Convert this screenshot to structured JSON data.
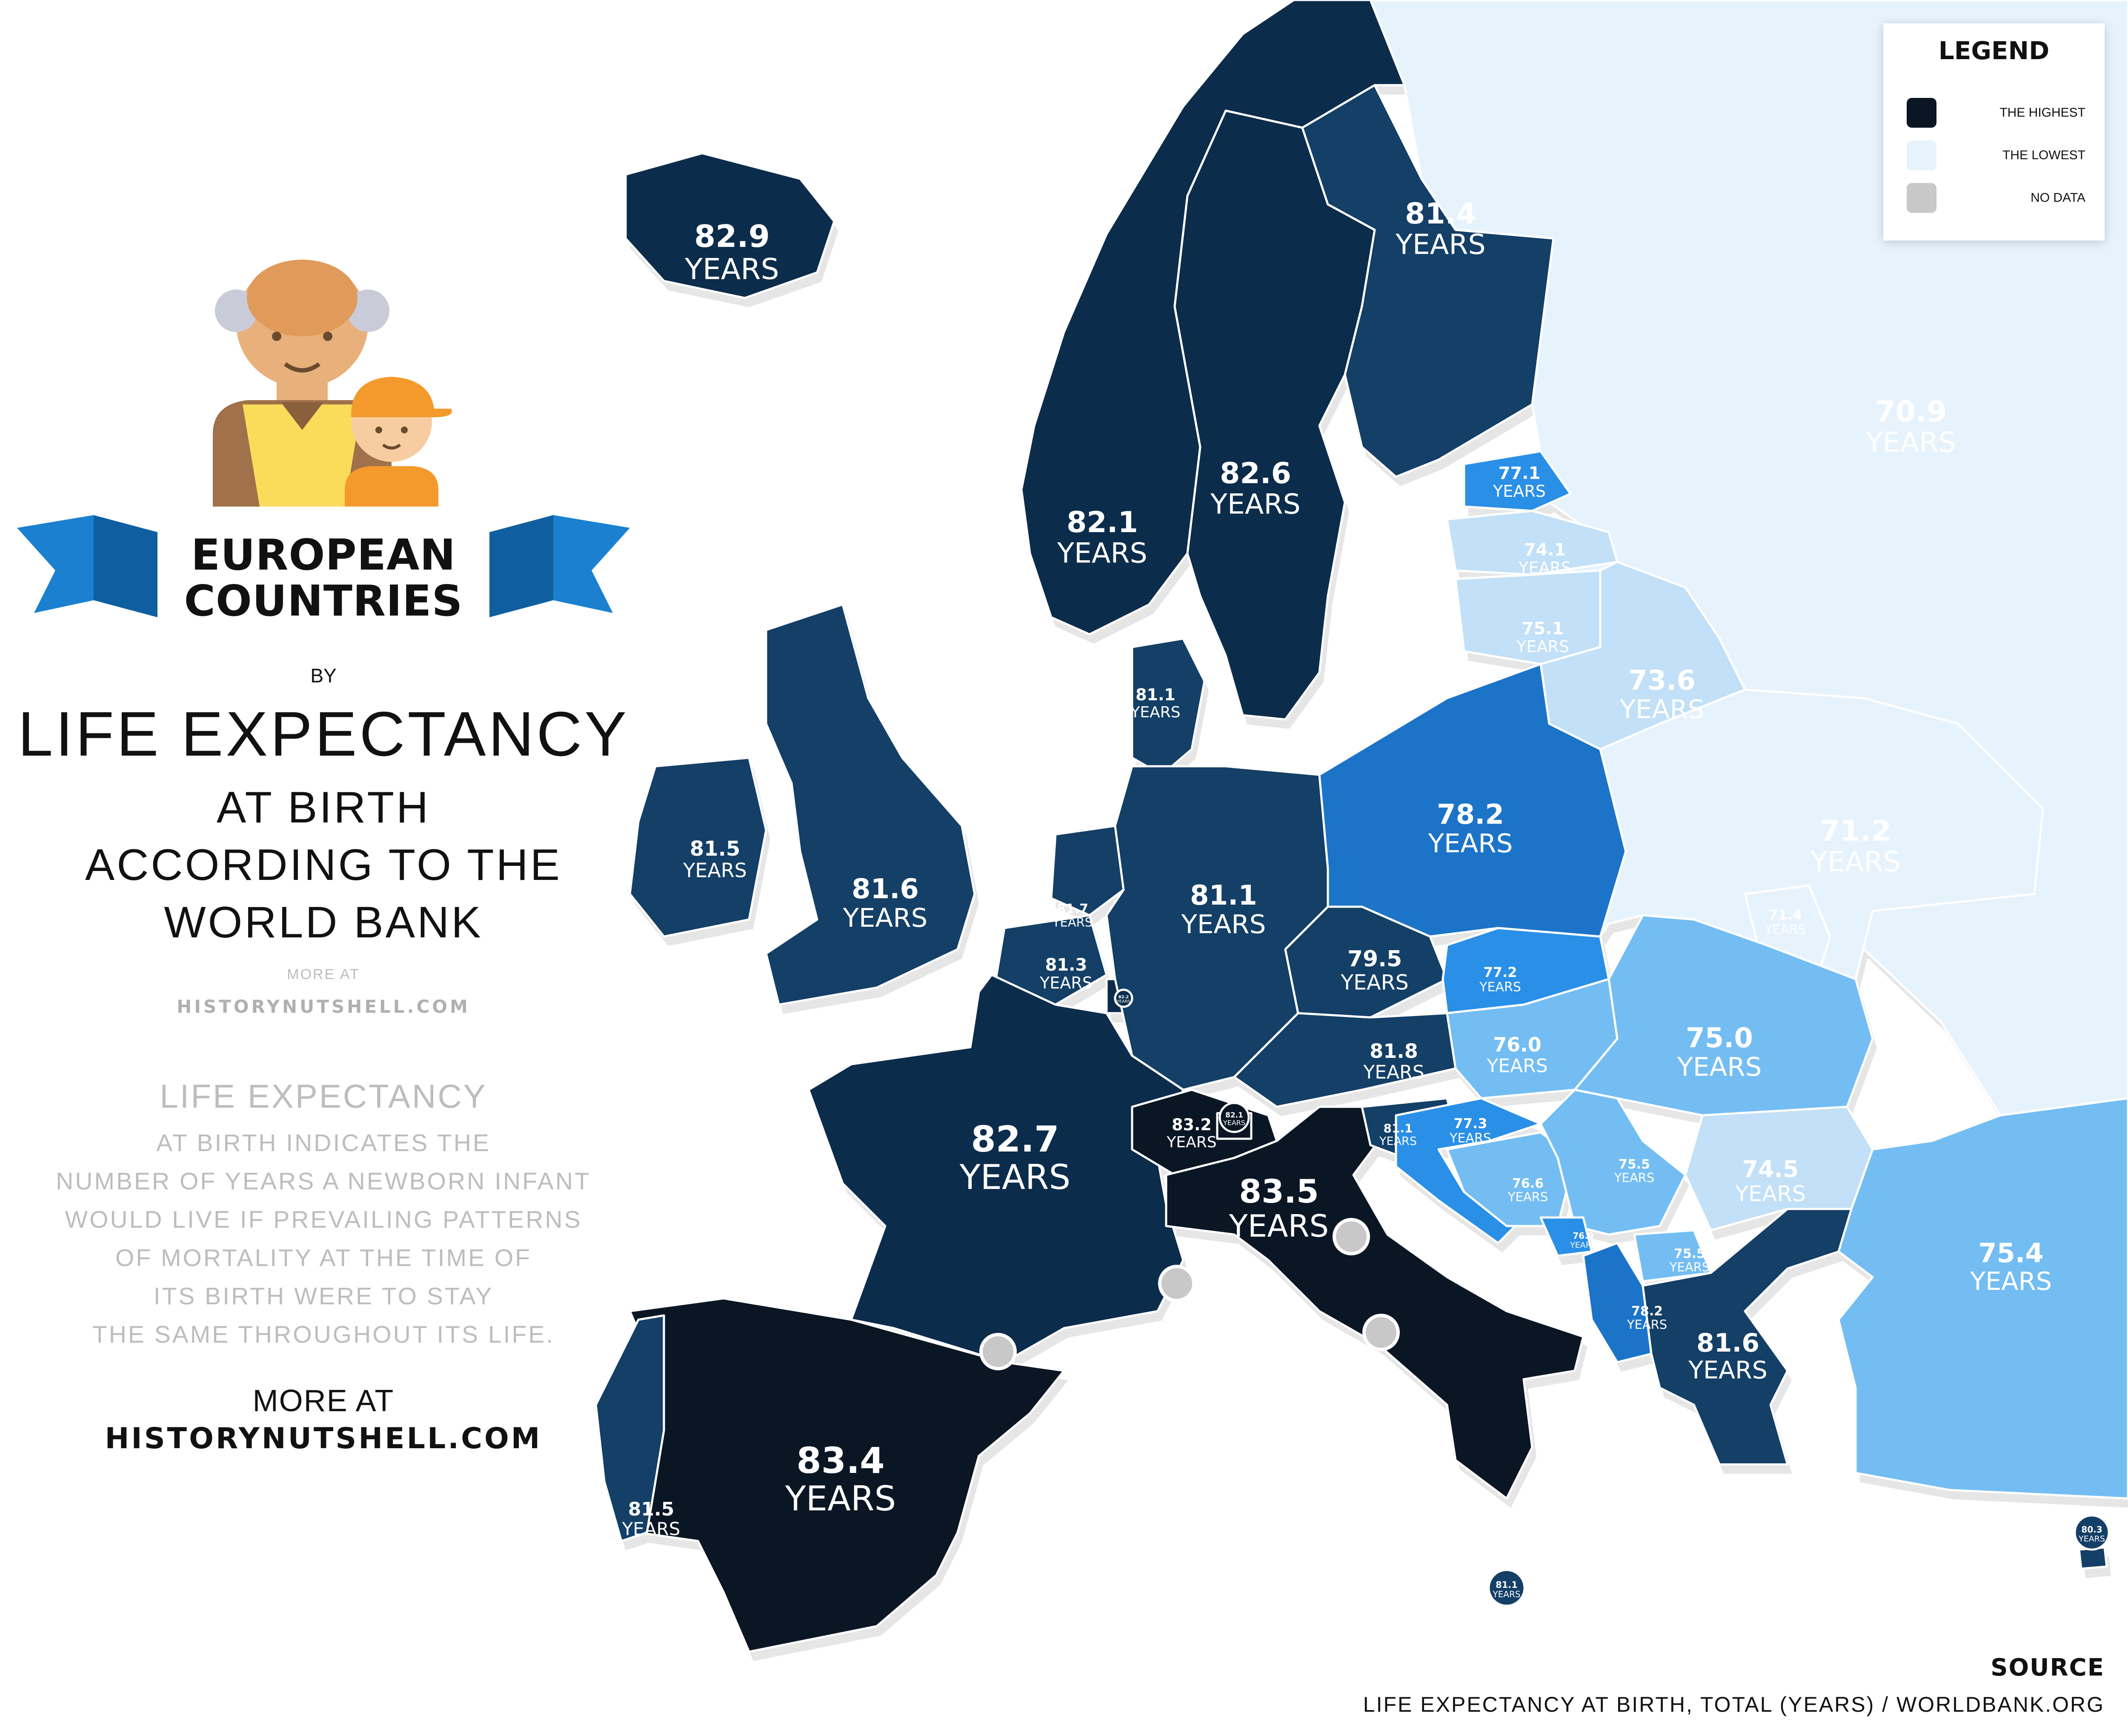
{
  "title": {
    "banner_line1": "EUROPEAN",
    "banner_line2": "COUNTRIES",
    "by": "BY",
    "main": "LIFE EXPECTANCY",
    "sub1": "AT BIRTH",
    "sub2": "ACCORDING TO THE",
    "sub3": "WORLD BANK"
  },
  "more_at_small": "MORE AT",
  "site_small": "HISTORYNUTSHELL.COM",
  "description": {
    "heading": "LIFE EXPECTANCY",
    "lines": [
      "AT BIRTH INDICATES THE",
      "NUMBER OF YEARS A NEWBORN INFANT",
      "WOULD LIVE IF PREVAILING PATTERNS",
      "OF MORTALITY AT THE TIME OF",
      "ITS BIRTH WERE TO STAY",
      "THE SAME THROUGHOUT ITS LIFE."
    ]
  },
  "more_at_big": "MORE AT",
  "site_big": "HISTORYNUTSHELL.COM",
  "legend": {
    "title": "LEGEND",
    "items": [
      {
        "label": "THE HIGHEST",
        "color": "#0b1624"
      },
      {
        "label": "THE LOWEST",
        "color": "#e6f3fd"
      },
      {
        "label": "NO DATA",
        "color": "#c8c8c8"
      }
    ]
  },
  "source": {
    "heading": "SOURCE",
    "text": "LIFE EXPECTANCY AT BIRTH, TOTAL (YEARS) / WORLDBANK.ORG"
  },
  "colors": {
    "highest": "#0b1624",
    "very_high": "#0c2c4b",
    "high": "#143f66",
    "mid_high": "#1c74c8",
    "mid": "#2a8fe6",
    "mid_low": "#73bdf3",
    "low": "#c2e0f7",
    "lowest": "#e6f3fd",
    "no_data": "#c8c8c8",
    "ribbon": "#1a80cf"
  },
  "unit_label": "YEARS",
  "countries": [
    {
      "name": "Iceland",
      "value": "82.9",
      "tier": "very_high"
    },
    {
      "name": "Norway",
      "value": "82.1",
      "tier": "very_high"
    },
    {
      "name": "Sweden",
      "value": "82.6",
      "tier": "very_high"
    },
    {
      "name": "Finland",
      "value": "81.4",
      "tier": "high"
    },
    {
      "name": "Russia",
      "value": "70.9",
      "tier": "lowest"
    },
    {
      "name": "Estonia",
      "value": "77.1",
      "tier": "mid"
    },
    {
      "name": "Latvia",
      "value": "74.1",
      "tier": "low"
    },
    {
      "name": "Lithuania",
      "value": "75.1",
      "tier": "low"
    },
    {
      "name": "Belarus",
      "value": "73.6",
      "tier": "low"
    },
    {
      "name": "Denmark",
      "value": "81.1",
      "tier": "high"
    },
    {
      "name": "Ireland",
      "value": "81.5",
      "tier": "high"
    },
    {
      "name": "United Kingdom",
      "value": "81.6",
      "tier": "high"
    },
    {
      "name": "Netherlands",
      "value": "81.7",
      "tier": "high"
    },
    {
      "name": "Belgium",
      "value": "81.3",
      "tier": "high"
    },
    {
      "name": "Luxembourg",
      "value": "82.2",
      "tier": "very_high"
    },
    {
      "name": "Germany",
      "value": "81.1",
      "tier": "high"
    },
    {
      "name": "Poland",
      "value": "78.2",
      "tier": "mid_high"
    },
    {
      "name": "Ukraine",
      "value": "71.2",
      "tier": "lowest"
    },
    {
      "name": "Moldova",
      "value": "71.4",
      "tier": "lowest"
    },
    {
      "name": "Czechia",
      "value": "79.5",
      "tier": "high"
    },
    {
      "name": "Slovakia",
      "value": "77.2",
      "tier": "mid"
    },
    {
      "name": "Austria",
      "value": "81.8",
      "tier": "high"
    },
    {
      "name": "Hungary",
      "value": "76.0",
      "tier": "mid_low"
    },
    {
      "name": "Romania",
      "value": "75.0",
      "tier": "mid_low"
    },
    {
      "name": "France",
      "value": "82.7",
      "tier": "very_high"
    },
    {
      "name": "Switzerland",
      "value": "83.2",
      "tier": "highest"
    },
    {
      "name": "Liechtenstein",
      "value": "82.1",
      "tier": "highest"
    },
    {
      "name": "Italy",
      "value": "83.5",
      "tier": "highest"
    },
    {
      "name": "Slovenia",
      "value": "81.1",
      "tier": "high"
    },
    {
      "name": "Croatia",
      "value": "77.3",
      "tier": "mid"
    },
    {
      "name": "Bosnia and Herzegovina",
      "value": "76.6",
      "tier": "mid_low"
    },
    {
      "name": "Serbia",
      "value": "75.5",
      "tier": "mid_low"
    },
    {
      "name": "Montenegro",
      "value": "76.9",
      "tier": "mid"
    },
    {
      "name": "North Macedonia",
      "value": "75.5",
      "tier": "mid_low"
    },
    {
      "name": "Albania",
      "value": "78.2",
      "tier": "mid_high"
    },
    {
      "name": "Bulgaria",
      "value": "74.5",
      "tier": "low"
    },
    {
      "name": "Greece",
      "value": "81.6",
      "tier": "high"
    },
    {
      "name": "Turkey",
      "value": "75.4",
      "tier": "mid_low"
    },
    {
      "name": "Spain",
      "value": "83.4",
      "tier": "highest"
    },
    {
      "name": "Portugal",
      "value": "81.5",
      "tier": "high"
    },
    {
      "name": "Malta",
      "value": "81.1",
      "tier": "high"
    },
    {
      "name": "Cyprus",
      "value": "80.3",
      "tier": "high"
    },
    {
      "name": "Andorra",
      "value": "",
      "tier": "no_data"
    },
    {
      "name": "Monaco",
      "value": "",
      "tier": "no_data"
    },
    {
      "name": "San Marino",
      "value": "",
      "tier": "no_data"
    },
    {
      "name": "Vatican City",
      "value": "",
      "tier": "no_data"
    }
  ]
}
